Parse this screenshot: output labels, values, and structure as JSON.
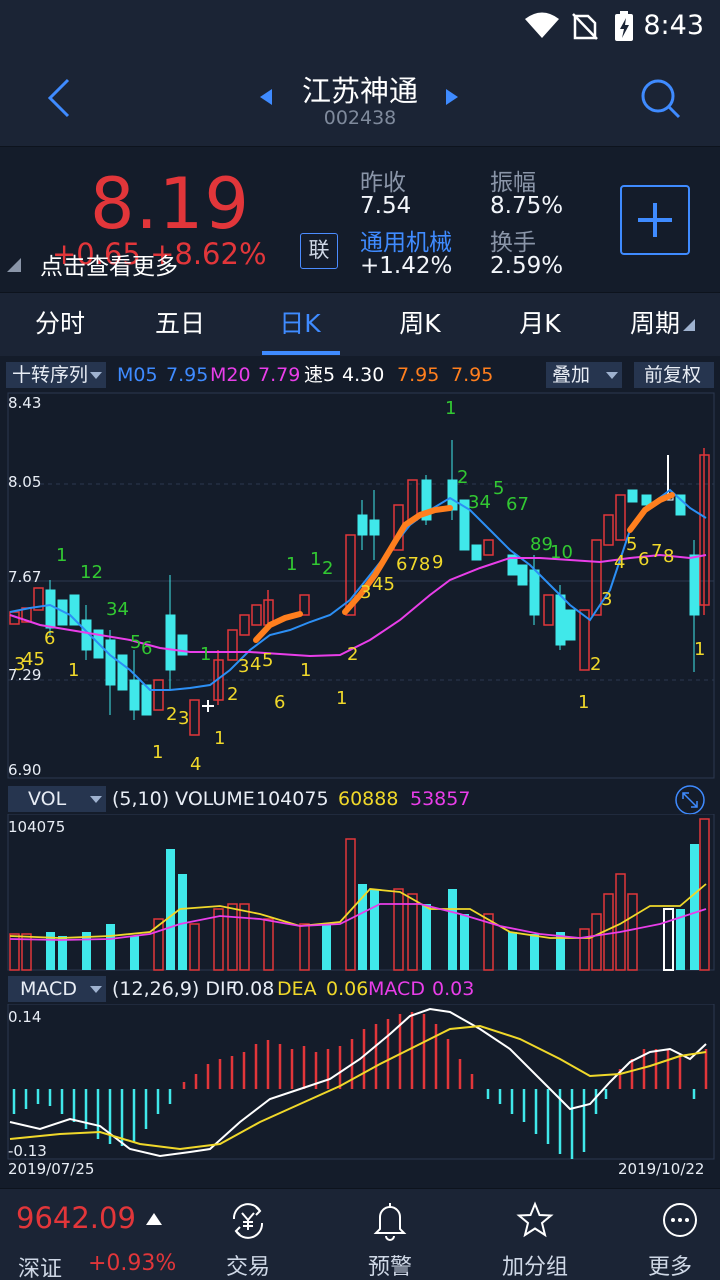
{
  "status_bar": {
    "time": "8:43"
  },
  "header": {
    "stock_name": "江苏神通",
    "stock_code": "002438"
  },
  "quote": {
    "price": "8.19",
    "change": "+0.65 +8.62%",
    "tap_more": "点击查看更多",
    "lian": "联",
    "prev_close_label": "昨收",
    "prev_close": "7.54",
    "sector_name": "通用机械",
    "sector_change": "+1.42%",
    "amplitude_label": "振幅",
    "amplitude": "8.75%",
    "turnover_label": "换手",
    "turnover": "2.59%",
    "up_color": "#e2363a"
  },
  "tabs": [
    {
      "label": "分时"
    },
    {
      "label": "五日"
    },
    {
      "label": "日K"
    },
    {
      "label": "周K"
    },
    {
      "label": "月K"
    },
    {
      "label": "周期"
    }
  ],
  "active_tab": "日K",
  "kline": {
    "indicator_select": "十转序列",
    "ma5_label": "M05",
    "ma5": "7.95",
    "ma20_label": "M20",
    "ma20": "7.79",
    "speed_label": "速5",
    "speed": "4.30",
    "extra1": "7.95",
    "extra2": "7.95",
    "overlay_btn": "叠加",
    "adjust_btn": "前复权",
    "y_labels": [
      "8.43",
      "8.05",
      "7.67",
      "7.29",
      "6.90"
    ]
  },
  "volume": {
    "select": "VOL",
    "params": "(5,10) VOLUME",
    "volume": "104075",
    "ma5": "60888",
    "ma10": "53857",
    "max_label": "104075"
  },
  "macd": {
    "select": "MACD",
    "params": "(12,26,9) DIF",
    "dif": "0.08",
    "dea_label": "DEA",
    "dea": "0.06",
    "macd_label": "MACD",
    "macd": "0.03",
    "y_top": "0.14",
    "y_bottom": "-0.13",
    "date_start": "2019/07/25",
    "date_end": "2019/10/22"
  },
  "bottom": {
    "index_value": "9642.09",
    "index_name": "深证",
    "index_change": "+0.93%",
    "nav": [
      {
        "label": "交易",
        "icon": "yen-exchange-icon"
      },
      {
        "label": "预警",
        "icon": "bell-icon"
      },
      {
        "label": "加分组",
        "icon": "star-icon"
      },
      {
        "label": "更多",
        "icon": "more-icon"
      }
    ]
  }
}
